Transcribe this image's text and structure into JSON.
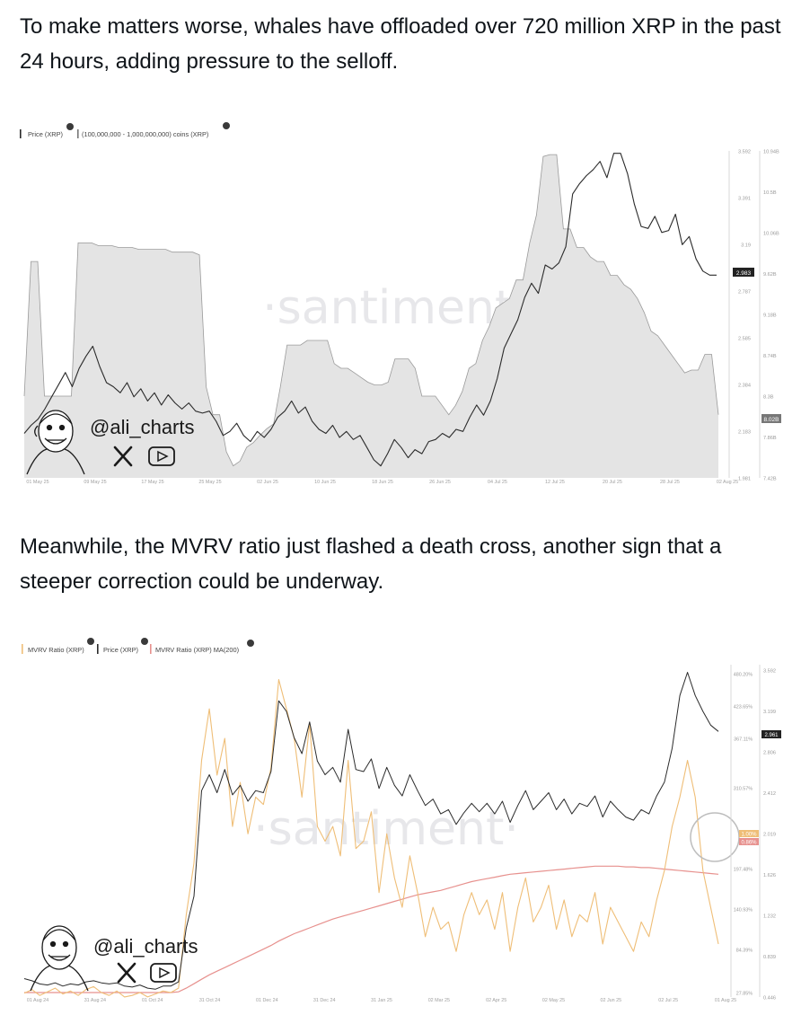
{
  "paragraphs": {
    "p1": "To make matters worse, whales have offloaded over 720 million XRP in the past 24 hours, adding pressure to the selloff.",
    "p2": "Meanwhile, the MVRV ratio just flashed a death cross, another sign that a steeper correction could be underway."
  },
  "watermark": "·santiment·",
  "handle": "@ali_charts",
  "icons": {
    "x": "x-logo-icon",
    "play": "play-button-icon",
    "avatar": "cartoon-avatar-icon",
    "close": "close-icon"
  },
  "colors": {
    "price": "#2b2b2b",
    "area_fill": "#e4e4e4",
    "area_line": "#9a9a9a",
    "mvrv": "#efbe77",
    "ma": "#e7918e",
    "highlight": "#ffffff"
  },
  "chart_data": [
    {
      "type": "line",
      "legend": [
        "Price (XRP)",
        "(100,000,000 - 1,000,000,000) coins (XRP)"
      ],
      "x_ticks": [
        "01 May 25",
        "09 May 25",
        "17 May 25",
        "25 May 25",
        "02 Jun 25",
        "10 Jun 25",
        "18 Jun 25",
        "26 Jun 25",
        "04 Jul 25",
        "12 Jul 25",
        "20 Jul 25",
        "28 Jul 25",
        "02 Aug 25"
      ],
      "y_left_ticks": [
        "3.592",
        "3.391",
        "3.19",
        "2.787",
        "2.585",
        "2.384",
        "2.183",
        "1.981"
      ],
      "y_left_current": "2.983",
      "y_right_ticks": [
        "10.94B",
        "10.5B",
        "10.06B",
        "9.62B",
        "9.18B",
        "8.74B",
        "8.3B",
        "7.86B",
        "7.42B"
      ],
      "y_right_current": "8.02B",
      "ylim_left": [
        1.981,
        3.592
      ],
      "ylim_right": [
        7.42,
        10.94
      ],
      "series": [
        {
          "name": "Price (XRP)",
          "values": [
            2.2,
            2.24,
            2.27,
            2.32,
            2.38,
            2.44,
            2.5,
            2.43,
            2.52,
            2.58,
            2.63,
            2.53,
            2.45,
            2.43,
            2.4,
            2.45,
            2.38,
            2.42,
            2.36,
            2.4,
            2.34,
            2.39,
            2.35,
            2.32,
            2.35,
            2.31,
            2.3,
            2.31,
            2.26,
            2.19,
            2.21,
            2.25,
            2.19,
            2.16,
            2.21,
            2.18,
            2.22,
            2.28,
            2.31,
            2.36,
            2.3,
            2.33,
            2.26,
            2.22,
            2.2,
            2.24,
            2.18,
            2.21,
            2.17,
            2.19,
            2.13,
            2.07,
            2.04,
            2.1,
            2.17,
            2.13,
            2.08,
            2.12,
            2.1,
            2.16,
            2.17,
            2.2,
            2.18,
            2.22,
            2.21,
            2.28,
            2.34,
            2.29,
            2.36,
            2.47,
            2.62,
            2.69,
            2.76,
            2.87,
            2.94,
            2.89,
            3.03,
            3.01,
            3.04,
            3.12,
            3.38,
            3.43,
            3.47,
            3.5,
            3.54,
            3.46,
            3.58,
            3.58,
            3.48,
            3.33,
            3.22,
            3.21,
            3.27,
            3.19,
            3.2,
            3.28,
            3.13,
            3.17,
            3.06,
            3.0,
            2.98,
            2.98
          ]
        },
        {
          "name": "(100,000,000 - 1,000,000,000) coins (XRP)",
          "values": [
            8.3,
            9.75,
            9.75,
            8.3,
            8.3,
            8.3,
            8.3,
            8.3,
            9.95,
            9.95,
            9.95,
            9.92,
            9.92,
            9.92,
            9.9,
            9.9,
            9.9,
            9.88,
            9.88,
            9.88,
            9.88,
            9.88,
            9.85,
            9.85,
            9.85,
            9.85,
            9.82,
            8.4,
            8.1,
            8.1,
            7.7,
            7.55,
            7.6,
            7.75,
            7.8,
            7.88,
            7.95,
            8.0,
            8.4,
            8.85,
            8.85,
            8.85,
            8.9,
            8.9,
            8.9,
            8.9,
            8.65,
            8.6,
            8.6,
            8.55,
            8.5,
            8.45,
            8.42,
            8.42,
            8.45,
            8.7,
            8.7,
            8.7,
            8.6,
            8.3,
            8.3,
            8.3,
            8.2,
            8.1,
            8.2,
            8.35,
            8.6,
            8.65,
            8.9,
            9.05,
            9.25,
            9.3,
            9.35,
            9.55,
            9.55,
            9.95,
            10.25,
            10.88,
            10.9,
            10.9,
            10.1,
            10.1,
            9.9,
            9.9,
            9.8,
            9.75,
            9.75,
            9.6,
            9.6,
            9.5,
            9.45,
            9.35,
            9.2,
            9.0,
            8.95,
            8.85,
            8.75,
            8.65,
            8.55,
            8.58,
            8.58,
            8.75,
            8.75,
            8.1
          ]
        }
      ]
    },
    {
      "type": "line",
      "legend": [
        "MVRV Ratio (XRP)",
        "Price (XRP)",
        "MVRV Ratio (XRP) MA(200)"
      ],
      "x_ticks": [
        "01 Aug 24",
        "31 Aug 24",
        "01 Oct 24",
        "31 Oct 24",
        "01 Dec 24",
        "31 Dec 24",
        "31 Jan 25",
        "02 Mar 25",
        "02 Apr 25",
        "02 May 25",
        "02 Jun 25",
        "02 Jul 25",
        "01 Aug 25"
      ],
      "y_left_ticks": [
        "480.20%",
        "423.65%",
        "367.11%",
        "310.57%",
        "197.48%",
        "140.93%",
        "84.39%",
        "27.85%"
      ],
      "y_left_current": [
        "1.00%",
        "0.86%"
      ],
      "y_right_ticks": [
        "3.592",
        "3.199",
        "2.806",
        "2.412",
        "2.019",
        "1.626",
        "1.232",
        "0.839",
        "0.446"
      ],
      "y_right_current": "2.961",
      "ylim_left": [
        27.85,
        480.2
      ],
      "ylim_right": [
        0.446,
        3.592
      ],
      "series": [
        {
          "name": "Price (XRP)",
          "values": [
            0.62,
            0.6,
            0.57,
            0.56,
            0.58,
            0.55,
            0.57,
            0.56,
            0.59,
            0.6,
            0.58,
            0.57,
            0.58,
            0.55,
            0.54,
            0.56,
            0.53,
            0.52,
            0.55,
            0.55,
            0.59,
            1.1,
            1.4,
            2.4,
            2.55,
            2.38,
            2.6,
            2.36,
            2.45,
            2.3,
            2.4,
            2.38,
            2.58,
            3.25,
            3.15,
            2.9,
            2.75,
            3.05,
            2.68,
            2.55,
            2.62,
            2.48,
            2.98,
            2.6,
            2.58,
            2.7,
            2.42,
            2.62,
            2.45,
            2.35,
            2.55,
            2.4,
            2.26,
            2.32,
            2.18,
            2.22,
            2.08,
            2.19,
            2.28,
            2.2,
            2.28,
            2.18,
            2.3,
            2.1,
            2.26,
            2.4,
            2.22,
            2.3,
            2.38,
            2.22,
            2.32,
            2.18,
            2.28,
            2.25,
            2.35,
            2.15,
            2.3,
            2.22,
            2.15,
            2.12,
            2.22,
            2.18,
            2.35,
            2.48,
            2.8,
            3.3,
            3.52,
            3.3,
            3.15,
            3.02,
            2.96
          ]
        },
        {
          "name": "MVRV Ratio (XRP)",
          "values": [
            33,
            38,
            30,
            35,
            40,
            32,
            36,
            30,
            38,
            42,
            34,
            30,
            36,
            28,
            30,
            34,
            28,
            32,
            36,
            34,
            40,
            140,
            210,
            350,
            420,
            330,
            380,
            260,
            320,
            250,
            300,
            290,
            340,
            460,
            420,
            380,
            300,
            400,
            260,
            240,
            260,
            220,
            350,
            230,
            240,
            280,
            170,
            250,
            190,
            150,
            220,
            170,
            110,
            150,
            120,
            130,
            90,
            140,
            170,
            140,
            160,
            120,
            170,
            90,
            150,
            190,
            130,
            150,
            180,
            120,
            160,
            110,
            140,
            130,
            170,
            100,
            150,
            130,
            110,
            90,
            130,
            110,
            160,
            200,
            260,
            300,
            350,
            300,
            200,
            150,
            100
          ]
        },
        {
          "name": "MVRV Ratio (XRP) MA(200)",
          "values": [
            34,
            34,
            34,
            34,
            34,
            34,
            34,
            34,
            34,
            34,
            34,
            34,
            34,
            34,
            34,
            34,
            34,
            34,
            34,
            34,
            35,
            40,
            46,
            52,
            58,
            63,
            68,
            73,
            78,
            83,
            88,
            93,
            98,
            104,
            109,
            114,
            118,
            122,
            126,
            130,
            134,
            137,
            140,
            143,
            146,
            149,
            152,
            155,
            158,
            161,
            164,
            167,
            169,
            171,
            173,
            176,
            179,
            182,
            185,
            187,
            189,
            191,
            193,
            195,
            196,
            197,
            198,
            199,
            200,
            201,
            202,
            203,
            204,
            205,
            206,
            206,
            206,
            206,
            205,
            205,
            204,
            204,
            203,
            202,
            201,
            200,
            199,
            198,
            197,
            196,
            195
          ]
        }
      ]
    }
  ]
}
